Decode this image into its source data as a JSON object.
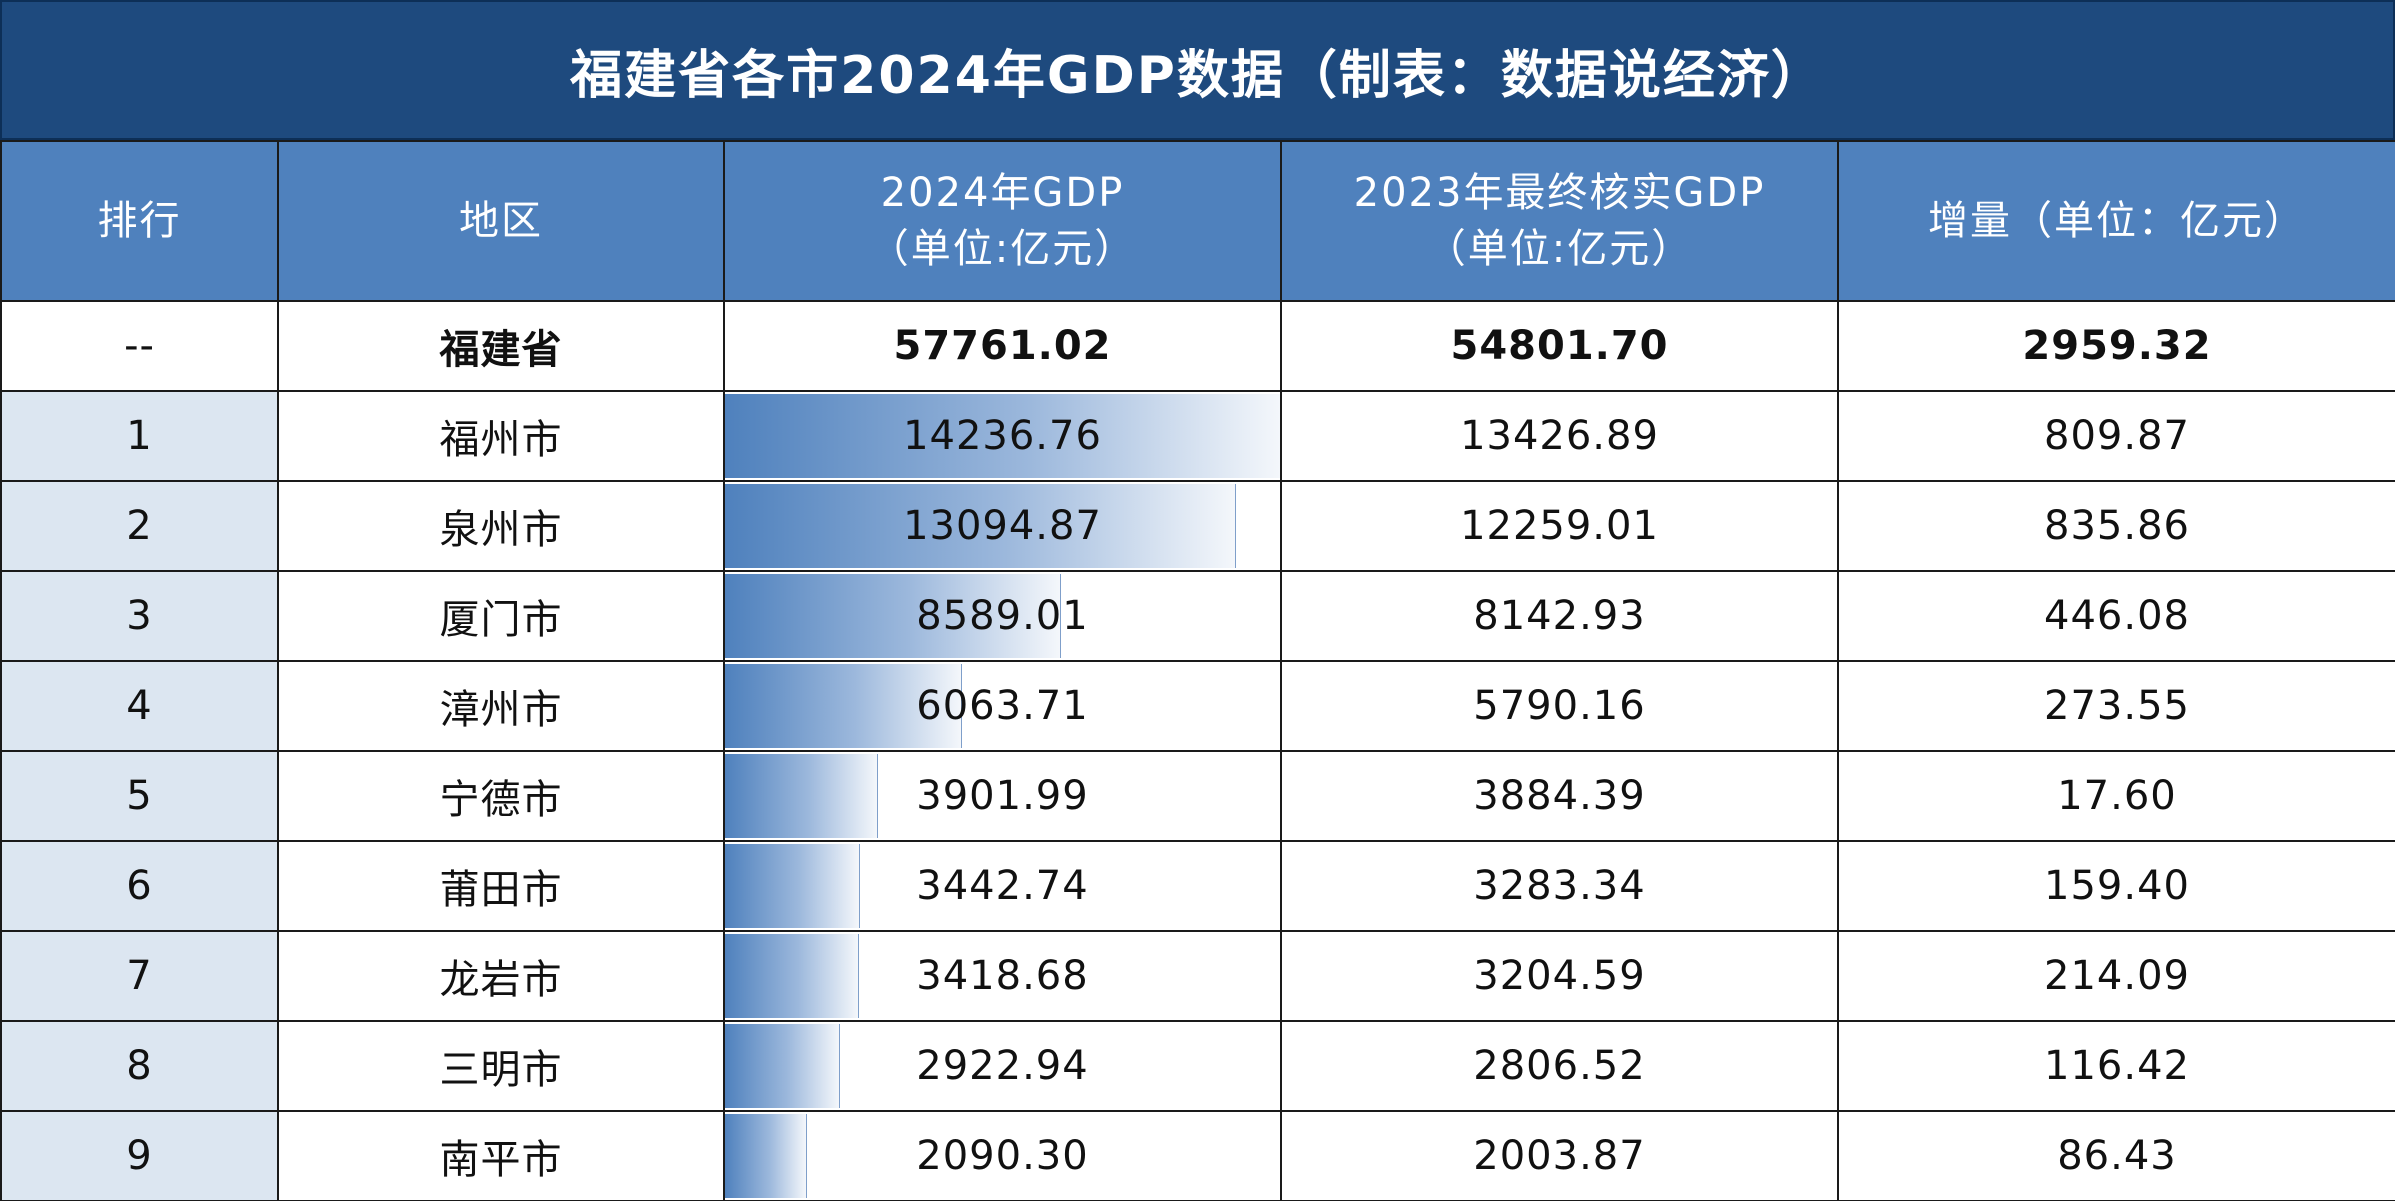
{
  "title": "福建省各市2024年GDP数据（制表：数据说经济）",
  "headers": {
    "rank": "排行",
    "region": "地区",
    "gdp2024_line1": "2024年GDP",
    "gdp2024_line2": "（单位:亿元）",
    "gdp2023_line1": "2023年最终核实GDP",
    "gdp2023_line2": "（单位:亿元）",
    "increase": "增量（单位：亿元）"
  },
  "summary": {
    "rank": "--",
    "region": "福建省",
    "gdp2024": "57761.02",
    "gdp2023": "54801.70",
    "increase": "2959.32"
  },
  "rows": [
    {
      "rank": "1",
      "region": "福州市",
      "gdp2024": "14236.76",
      "gdp2023": "13426.89",
      "increase": "809.87",
      "bar": 14236.76
    },
    {
      "rank": "2",
      "region": "泉州市",
      "gdp2024": "13094.87",
      "gdp2023": "12259.01",
      "increase": "835.86",
      "bar": 13094.87
    },
    {
      "rank": "3",
      "region": "厦门市",
      "gdp2024": "8589.01",
      "gdp2023": "8142.93",
      "increase": "446.08",
      "bar": 8589.01
    },
    {
      "rank": "4",
      "region": "漳州市",
      "gdp2024": "6063.71",
      "gdp2023": "5790.16",
      "increase": "273.55",
      "bar": 6063.71
    },
    {
      "rank": "5",
      "region": "宁德市",
      "gdp2024": "3901.99",
      "gdp2023": "3884.39",
      "increase": "17.60",
      "bar": 3901.99
    },
    {
      "rank": "6",
      "region": "莆田市",
      "gdp2024": "3442.74",
      "gdp2023": "3283.34",
      "increase": "159.40",
      "bar": 3442.74
    },
    {
      "rank": "7",
      "region": "龙岩市",
      "gdp2024": "3418.68",
      "gdp2023": "3204.59",
      "increase": "214.09",
      "bar": 3418.68
    },
    {
      "rank": "8",
      "region": "三明市",
      "gdp2024": "2922.94",
      "gdp2023": "2806.52",
      "increase": "116.42",
      "bar": 2922.94
    },
    {
      "rank": "9",
      "region": "南平市",
      "gdp2024": "2090.30",
      "gdp2023": "2003.87",
      "increase": "86.43",
      "bar": 2090.3
    }
  ],
  "colors": {
    "title_bg": "#1e4a7e",
    "header_bg": "#4f81bd",
    "rank_bg": "#dce6f1",
    "bar_start": "#4f81bd",
    "bar_end": "#f4f7fb"
  }
}
